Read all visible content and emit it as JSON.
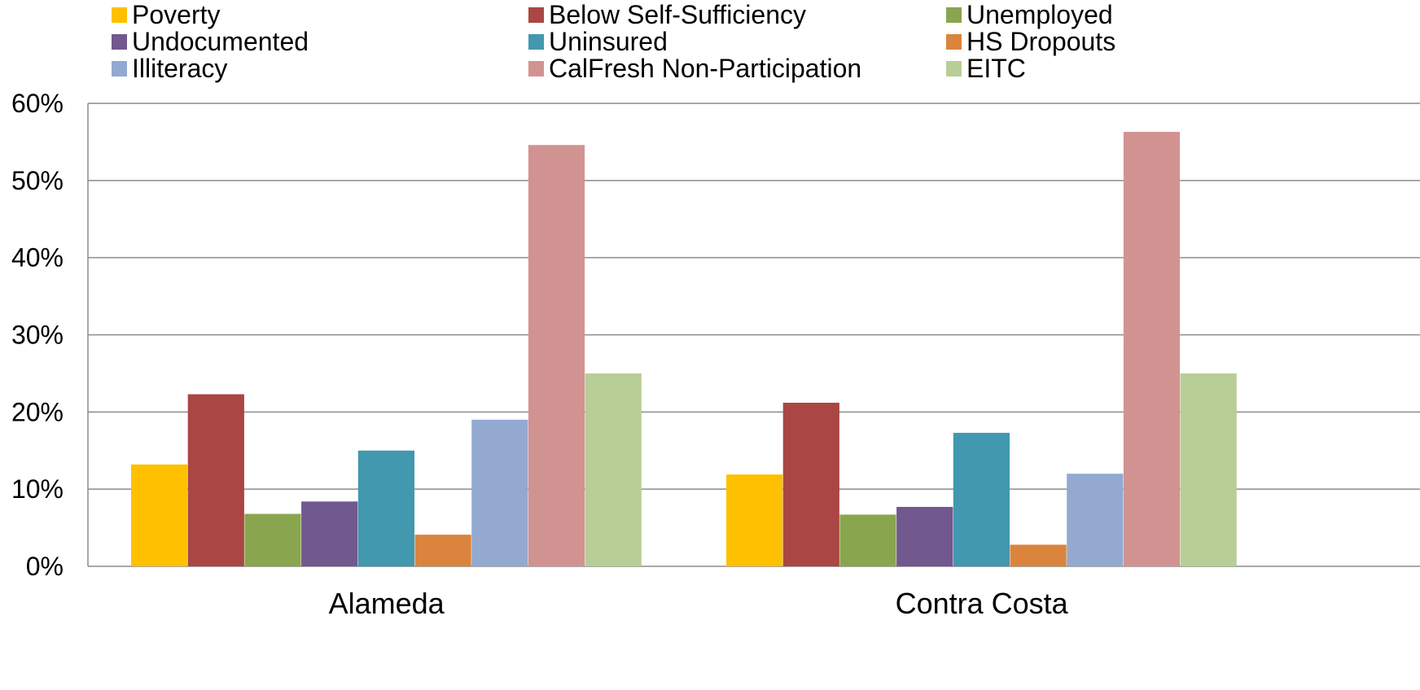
{
  "chart_data": {
    "type": "bar",
    "categories": [
      "Alameda",
      "Contra Costa"
    ],
    "ylim": [
      0,
      0.6
    ],
    "yticks": [
      {
        "value": 0,
        "label": "0%"
      },
      {
        "value": 0.1,
        "label": "10%"
      },
      {
        "value": 0.2,
        "label": "20%"
      },
      {
        "value": 0.3,
        "label": "30%"
      },
      {
        "value": 0.4,
        "label": "40%"
      },
      {
        "value": 0.5,
        "label": "50%"
      },
      {
        "value": 0.6,
        "label": "60%"
      }
    ],
    "grid": true,
    "legend_position": "top",
    "series": [
      {
        "name": "Poverty",
        "color": "#ffc000",
        "values": [
          0.132,
          0.119
        ]
      },
      {
        "name": "Below Self-Sufficiency",
        "color": "#aa4644",
        "values": [
          0.223,
          0.212
        ]
      },
      {
        "name": "Unemployed",
        "color": "#89a54e",
        "values": [
          0.068,
          0.067
        ]
      },
      {
        "name": "Undocumented",
        "color": "#71588f",
        "values": [
          0.084,
          0.077
        ]
      },
      {
        "name": "Uninsured",
        "color": "#4198af",
        "values": [
          0.15,
          0.173
        ]
      },
      {
        "name": "HS Dropouts",
        "color": "#db843d",
        "values": [
          0.041,
          0.028
        ]
      },
      {
        "name": "Illiteracy",
        "color": "#93a9cf",
        "values": [
          0.19,
          0.12
        ]
      },
      {
        "name": "CalFresh Non-Participation",
        "color": "#d19392",
        "values": [
          0.546,
          0.563
        ]
      },
      {
        "name": "EITC",
        "color": "#b9cd96",
        "values": [
          0.25,
          0.25
        ]
      }
    ]
  }
}
